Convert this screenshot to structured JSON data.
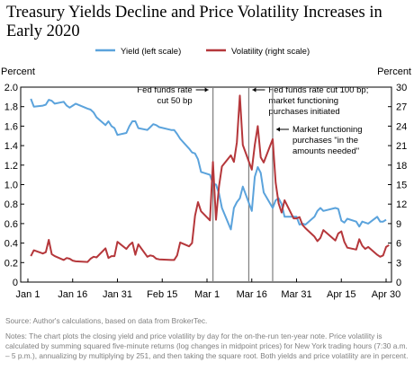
{
  "title": "Treasury Yields Decline and Price Volatility Increases in Early 2020",
  "source": "Source: Author's calculations, based on data from BrokerTec.",
  "notes": "Notes: The chart plots the closing yield and price volatility by day for the on-the-run ten-year note. Price volatility is calculated by summing squared five-minute returns (log changes in midpoint prices) for New York trading hours (7:30 a.m. – 5 p.m.), annualizing by multiplying by 251, and then taking the square root. Both yields and price volatility are in percent.",
  "chart_data": {
    "type": "line",
    "y_left_label": "Percent",
    "y_right_label": "Percent",
    "y_left_range": [
      0,
      2.0
    ],
    "y_left_ticks": [
      "0",
      "0.2",
      "0.4",
      "0.6",
      "0.8",
      "1.0",
      "1.2",
      "1.4",
      "1.6",
      "1.8",
      "2.0"
    ],
    "y_right_range": [
      0,
      30
    ],
    "y_right_ticks": [
      "0",
      "3",
      "6",
      "9",
      "12",
      "15",
      "18",
      "21",
      "24",
      "27",
      "30"
    ],
    "x_range": [
      "2020-01-01",
      "2020-04-30"
    ],
    "x_ticks": [
      {
        "date": "2020-01-01",
        "label": "Jan 1"
      },
      {
        "date": "2020-01-16",
        "label": "Jan 16"
      },
      {
        "date": "2020-01-31",
        "label": "Jan 31"
      },
      {
        "date": "2020-02-15",
        "label": "Feb 15"
      },
      {
        "date": "2020-03-01",
        "label": "Mar 1"
      },
      {
        "date": "2020-03-16",
        "label": "Mar 16"
      },
      {
        "date": "2020-03-31",
        "label": "Mar 31"
      },
      {
        "date": "2020-04-15",
        "label": "Apr 15"
      },
      {
        "date": "2020-04-30",
        "label": "Apr 30"
      }
    ],
    "legend_position": "top",
    "series": [
      {
        "name": "Yield (left scale)",
        "axis": "left",
        "color": "#5ba3dc",
        "points": [
          [
            "2020-01-02",
            1.88
          ],
          [
            "2020-01-03",
            1.8
          ],
          [
            "2020-01-06",
            1.81
          ],
          [
            "2020-01-07",
            1.82
          ],
          [
            "2020-01-08",
            1.87
          ],
          [
            "2020-01-09",
            1.86
          ],
          [
            "2020-01-10",
            1.83
          ],
          [
            "2020-01-13",
            1.85
          ],
          [
            "2020-01-14",
            1.81
          ],
          [
            "2020-01-15",
            1.79
          ],
          [
            "2020-01-16",
            1.81
          ],
          [
            "2020-01-17",
            1.83
          ],
          [
            "2020-01-21",
            1.78
          ],
          [
            "2020-01-22",
            1.77
          ],
          [
            "2020-01-23",
            1.74
          ],
          [
            "2020-01-24",
            1.69
          ],
          [
            "2020-01-27",
            1.61
          ],
          [
            "2020-01-28",
            1.65
          ],
          [
            "2020-01-29",
            1.6
          ],
          [
            "2020-01-30",
            1.58
          ],
          [
            "2020-01-31",
            1.51
          ],
          [
            "2020-02-03",
            1.53
          ],
          [
            "2020-02-04",
            1.6
          ],
          [
            "2020-02-05",
            1.65
          ],
          [
            "2020-02-06",
            1.65
          ],
          [
            "2020-02-07",
            1.58
          ],
          [
            "2020-02-10",
            1.56
          ],
          [
            "2020-02-11",
            1.59
          ],
          [
            "2020-02-12",
            1.62
          ],
          [
            "2020-02-13",
            1.61
          ],
          [
            "2020-02-14",
            1.59
          ],
          [
            "2020-02-18",
            1.56
          ],
          [
            "2020-02-19",
            1.56
          ],
          [
            "2020-02-20",
            1.52
          ],
          [
            "2020-02-21",
            1.47
          ],
          [
            "2020-02-24",
            1.37
          ],
          [
            "2020-02-25",
            1.33
          ],
          [
            "2020-02-26",
            1.32
          ],
          [
            "2020-02-27",
            1.26
          ],
          [
            "2020-02-28",
            1.13
          ],
          [
            "2020-03-02",
            1.1
          ],
          [
            "2020-03-03",
            1.01
          ],
          [
            "2020-03-04",
            1.0
          ],
          [
            "2020-03-05",
            0.91
          ],
          [
            "2020-03-06",
            0.76
          ],
          [
            "2020-03-09",
            0.54
          ],
          [
            "2020-03-10",
            0.76
          ],
          [
            "2020-03-11",
            0.82
          ],
          [
            "2020-03-12",
            0.86
          ],
          [
            "2020-03-13",
            0.98
          ],
          [
            "2020-03-16",
            0.73
          ],
          [
            "2020-03-17",
            1.08
          ],
          [
            "2020-03-18",
            1.18
          ],
          [
            "2020-03-19",
            1.12
          ],
          [
            "2020-03-20",
            0.92
          ],
          [
            "2020-03-23",
            0.76
          ],
          [
            "2020-03-24",
            0.84
          ],
          [
            "2020-03-25",
            0.86
          ],
          [
            "2020-03-26",
            0.8
          ],
          [
            "2020-03-27",
            0.67
          ],
          [
            "2020-03-30",
            0.67
          ],
          [
            "2020-03-31",
            0.67
          ],
          [
            "2020-04-01",
            0.59
          ],
          [
            "2020-04-02",
            0.6
          ],
          [
            "2020-04-03",
            0.59
          ],
          [
            "2020-04-06",
            0.67
          ],
          [
            "2020-04-07",
            0.73
          ],
          [
            "2020-04-08",
            0.76
          ],
          [
            "2020-04-09",
            0.73
          ],
          [
            "2020-04-13",
            0.76
          ],
          [
            "2020-04-14",
            0.75
          ],
          [
            "2020-04-15",
            0.63
          ],
          [
            "2020-04-16",
            0.61
          ],
          [
            "2020-04-17",
            0.65
          ],
          [
            "2020-04-20",
            0.62
          ],
          [
            "2020-04-21",
            0.57
          ],
          [
            "2020-04-22",
            0.62
          ],
          [
            "2020-04-23",
            0.61
          ],
          [
            "2020-04-24",
            0.6
          ],
          [
            "2020-04-27",
            0.67
          ],
          [
            "2020-04-28",
            0.62
          ],
          [
            "2020-04-29",
            0.62
          ],
          [
            "2020-04-30",
            0.64
          ]
        ]
      },
      {
        "name": "Volatility (right scale)",
        "axis": "right",
        "color": "#b5373b",
        "points": [
          [
            "2020-01-02",
            4.0
          ],
          [
            "2020-01-03",
            4.9
          ],
          [
            "2020-01-06",
            4.4
          ],
          [
            "2020-01-07",
            4.6
          ],
          [
            "2020-01-08",
            6.5
          ],
          [
            "2020-01-09",
            4.3
          ],
          [
            "2020-01-10",
            4.0
          ],
          [
            "2020-01-13",
            3.4
          ],
          [
            "2020-01-14",
            3.7
          ],
          [
            "2020-01-15",
            3.6
          ],
          [
            "2020-01-16",
            3.3
          ],
          [
            "2020-01-17",
            3.2
          ],
          [
            "2020-01-21",
            3.1
          ],
          [
            "2020-01-22",
            3.6
          ],
          [
            "2020-01-23",
            3.9
          ],
          [
            "2020-01-24",
            3.8
          ],
          [
            "2020-01-27",
            5.2
          ],
          [
            "2020-01-28",
            3.7
          ],
          [
            "2020-01-29",
            4.0
          ],
          [
            "2020-01-30",
            4.0
          ],
          [
            "2020-01-31",
            6.2
          ],
          [
            "2020-02-03",
            5.1
          ],
          [
            "2020-02-04",
            5.7
          ],
          [
            "2020-02-05",
            6.1
          ],
          [
            "2020-02-06",
            4.2
          ],
          [
            "2020-02-07",
            5.8
          ],
          [
            "2020-02-10",
            3.9
          ],
          [
            "2020-02-11",
            4.1
          ],
          [
            "2020-02-12",
            4.0
          ],
          [
            "2020-02-13",
            3.6
          ],
          [
            "2020-02-14",
            3.5
          ],
          [
            "2020-02-18",
            3.4
          ],
          [
            "2020-02-19",
            3.4
          ],
          [
            "2020-02-20",
            4.1
          ],
          [
            "2020-02-21",
            6.1
          ],
          [
            "2020-02-24",
            5.5
          ],
          [
            "2020-02-25",
            6.0
          ],
          [
            "2020-02-26",
            10.2
          ],
          [
            "2020-02-27",
            12.3
          ],
          [
            "2020-02-28",
            10.9
          ],
          [
            "2020-03-02",
            9.5
          ],
          [
            "2020-03-03",
            18.5
          ],
          [
            "2020-03-04",
            9.6
          ],
          [
            "2020-03-05",
            14.7
          ],
          [
            "2020-03-06",
            17.8
          ],
          [
            "2020-03-09",
            19.5
          ],
          [
            "2020-03-10",
            18.5
          ],
          [
            "2020-03-11",
            21.5
          ],
          [
            "2020-03-12",
            28.7
          ],
          [
            "2020-03-13",
            21.1
          ],
          [
            "2020-03-16",
            17.3
          ],
          [
            "2020-03-17",
            21.1
          ],
          [
            "2020-03-18",
            24.0
          ],
          [
            "2020-03-19",
            19.2
          ],
          [
            "2020-03-20",
            18.4
          ],
          [
            "2020-03-23",
            22.0
          ],
          [
            "2020-03-24",
            15.3
          ],
          [
            "2020-03-25",
            12.1
          ],
          [
            "2020-03-26",
            10.7
          ],
          [
            "2020-03-27",
            12.6
          ],
          [
            "2020-03-30",
            9.8
          ],
          [
            "2020-03-31",
            9.8
          ],
          [
            "2020-04-01",
            10.0
          ],
          [
            "2020-04-02",
            8.8
          ],
          [
            "2020-04-03",
            8.3
          ],
          [
            "2020-04-06",
            7.0
          ],
          [
            "2020-04-07",
            6.3
          ],
          [
            "2020-04-08",
            6.8
          ],
          [
            "2020-04-09",
            8.0
          ],
          [
            "2020-04-13",
            6.4
          ],
          [
            "2020-04-14",
            7.5
          ],
          [
            "2020-04-15",
            7.8
          ],
          [
            "2020-04-16",
            6.2
          ],
          [
            "2020-04-17",
            5.3
          ],
          [
            "2020-04-20",
            5.0
          ],
          [
            "2020-04-21",
            6.6
          ],
          [
            "2020-04-22",
            5.6
          ],
          [
            "2020-04-23",
            5.1
          ],
          [
            "2020-04-24",
            5.4
          ],
          [
            "2020-04-27",
            4.2
          ],
          [
            "2020-04-28",
            3.9
          ],
          [
            "2020-04-29",
            4.1
          ],
          [
            "2020-04-30",
            5.4
          ],
          [
            "2020-05-01",
            5.7
          ]
        ]
      }
    ],
    "event_lines": [
      {
        "date": "2020-03-03",
        "label_lines": [
          "Fed funds rate",
          "cut 50 bp"
        ],
        "arrow": "left"
      },
      {
        "date": "2020-03-15",
        "label_lines": [
          "Fed funds rate cut 100 bp;",
          "market functioning",
          "purchases initiated"
        ],
        "arrow": "right"
      },
      {
        "date": "2020-03-23",
        "label_lines": [
          "Market functioning",
          "purchases \"in the",
          "amounts needed\""
        ],
        "arrow": "right"
      }
    ]
  }
}
